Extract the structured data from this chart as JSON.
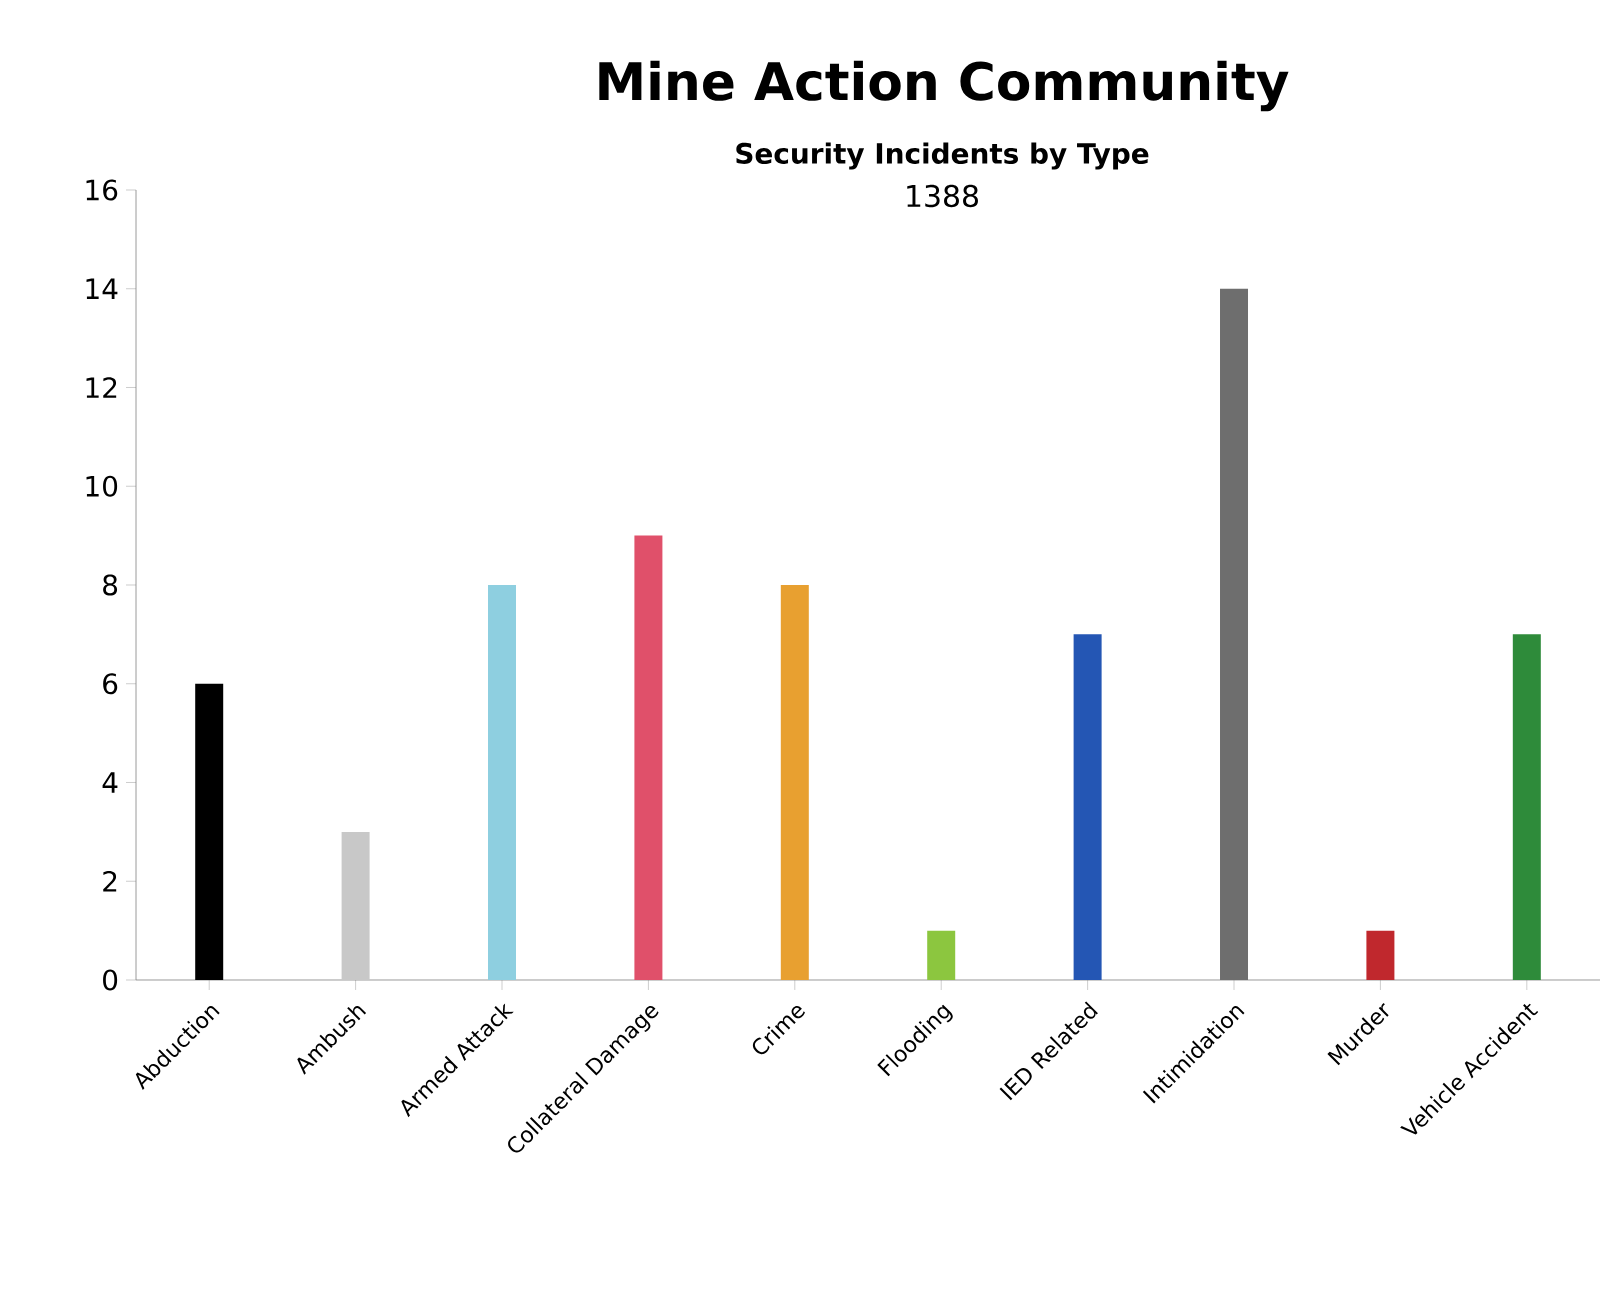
{
  "chart_data": {
    "type": "bar",
    "title": "Mine Action Community",
    "subtitle": "Security Incidents by Type",
    "annotations": [
      "1388"
    ],
    "categories": [
      "Abduction",
      "Ambush",
      "Armed Attack",
      "Collateral Damage",
      "Crime",
      "Flooding",
      "IED Related",
      "Intimidation",
      "Murder",
      "Vehicle Accident"
    ],
    "values": [
      6,
      3,
      8,
      9,
      8,
      1,
      7,
      14,
      1,
      7
    ],
    "colors": [
      "#000000",
      "#c8c8c8",
      "#8ecfe0",
      "#e0506a",
      "#e8a030",
      "#8cc63f",
      "#2456b4",
      "#6e6e6e",
      "#c0282d",
      "#2e8b3a"
    ],
    "ylim": [
      0,
      16
    ],
    "yticks": [
      0,
      2,
      4,
      6,
      8,
      10,
      12,
      14,
      16
    ]
  }
}
